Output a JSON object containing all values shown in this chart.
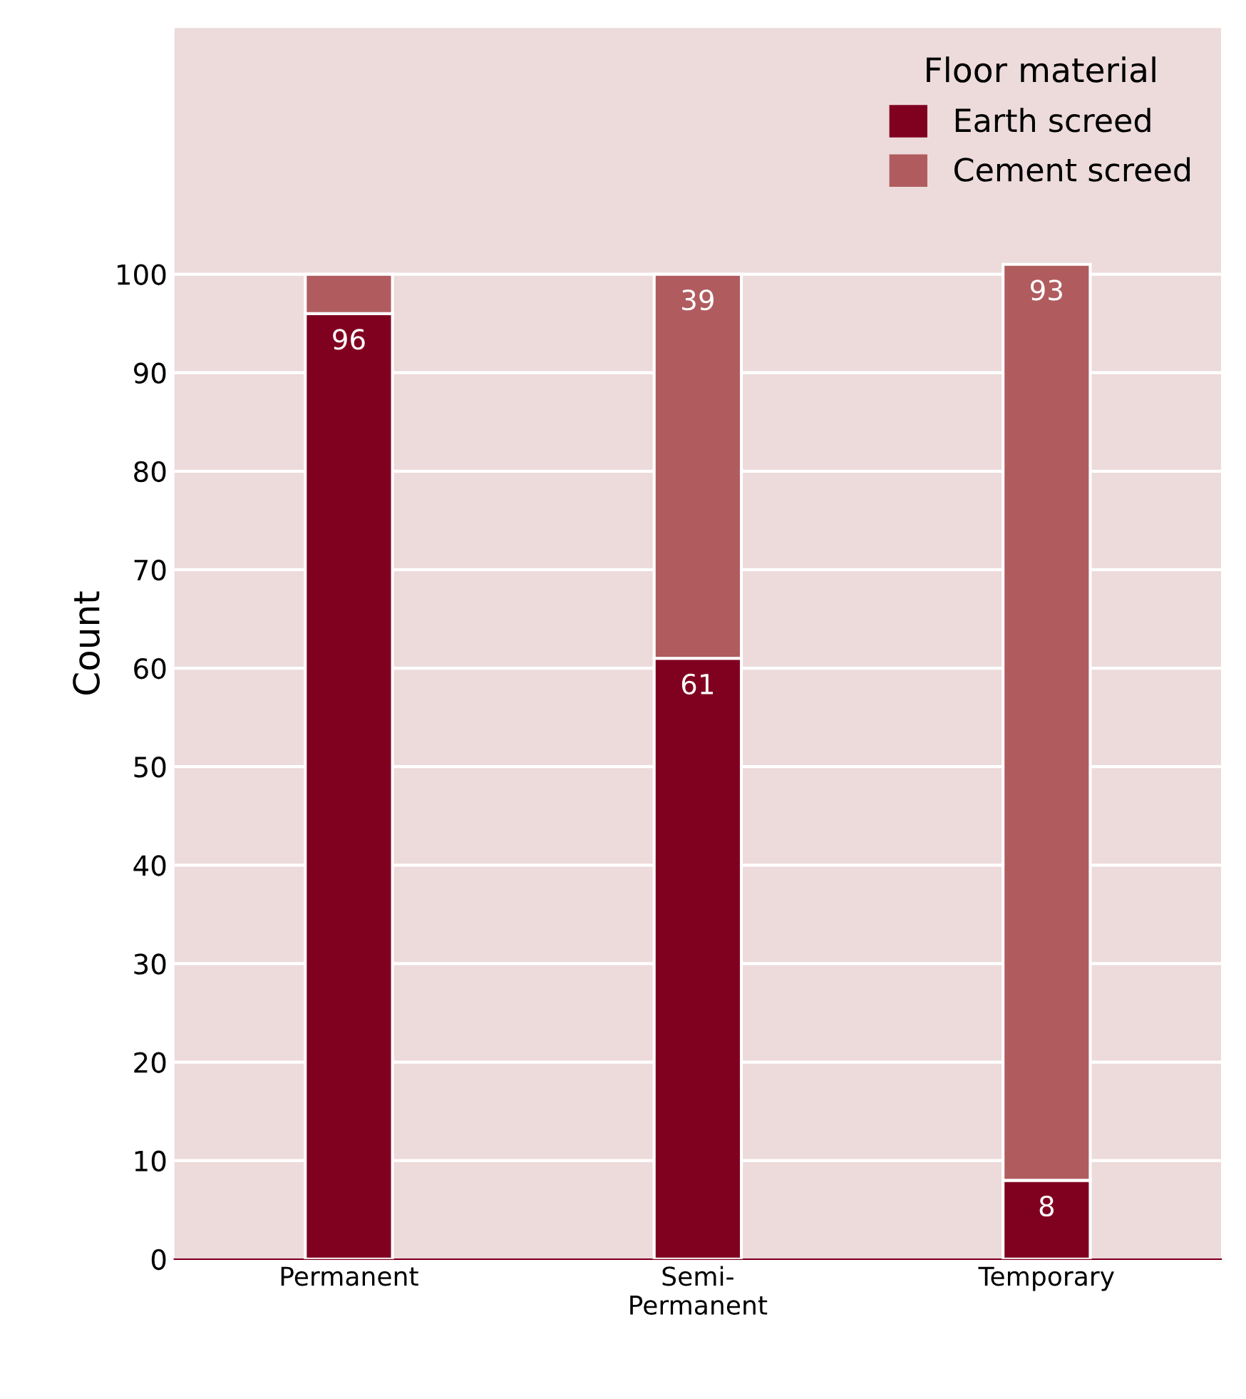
{
  "chart_data": {
    "type": "bar",
    "stacked": true,
    "ylabel": "Count",
    "legend_title": "Floor material",
    "legend": "top right",
    "grid": "y",
    "categories": [
      "Permanent",
      "Semi-\nPermanent",
      "Temporary"
    ],
    "series": [
      {
        "name": "Earth screed",
        "color": "#800020",
        "values": [
          96,
          61,
          8
        ],
        "value_labels": [
          "96",
          "61",
          "8"
        ]
      },
      {
        "name": "Cement screed",
        "color": "#b05c5f",
        "values": [
          4,
          39,
          93
        ],
        "value_labels": [
          null,
          "39",
          "93"
        ]
      }
    ],
    "ylim": [
      0,
      125
    ],
    "yticks": [
      0,
      10,
      20,
      30,
      40,
      50,
      60,
      70,
      80,
      90,
      100
    ]
  }
}
